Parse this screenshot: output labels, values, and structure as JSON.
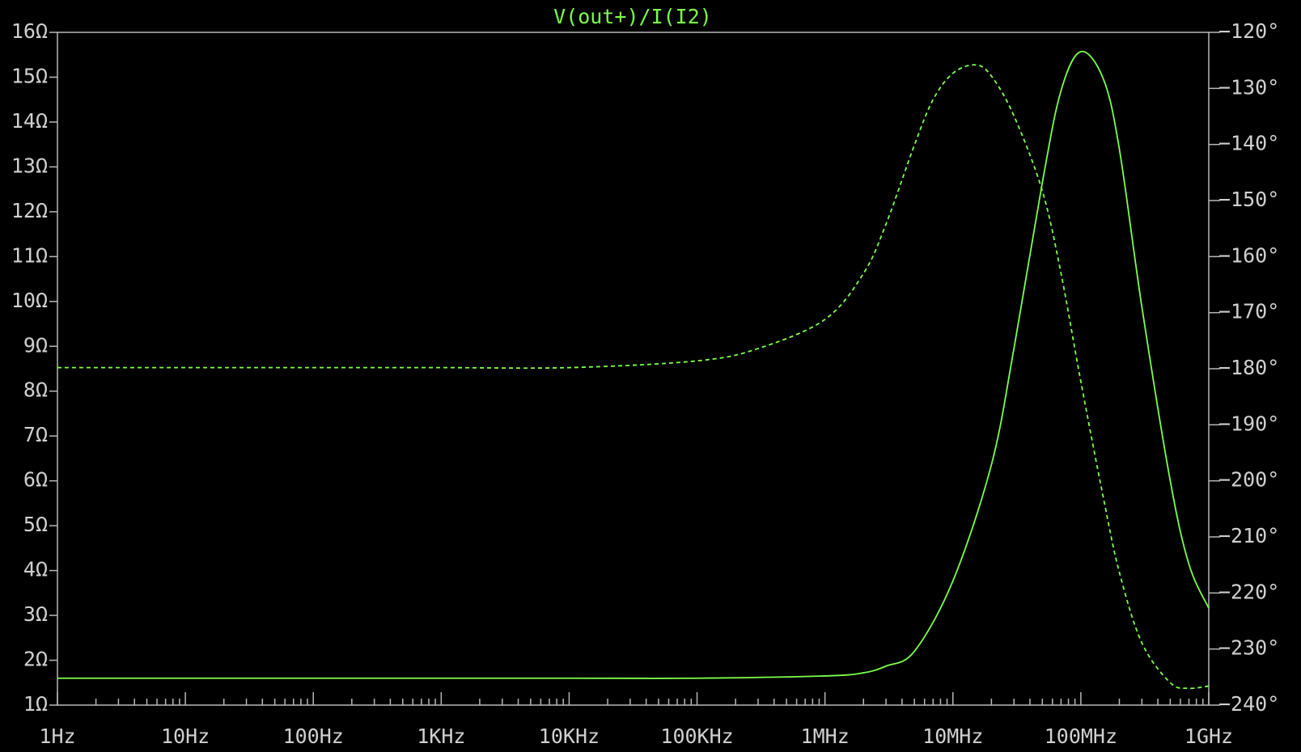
{
  "chart_data": {
    "type": "line",
    "title": "V(out+)/I(I2)",
    "title_color": "#7cff4a",
    "xscale": "log",
    "xlim": [
      1,
      1000000000
    ],
    "xticks": [
      {
        "value": 1,
        "label": "1Hz"
      },
      {
        "value": 10,
        "label": "10Hz"
      },
      {
        "value": 100,
        "label": "100Hz"
      },
      {
        "value": 1000,
        "label": "1KHz"
      },
      {
        "value": 10000,
        "label": "10KHz"
      },
      {
        "value": 100000,
        "label": "100KHz"
      },
      {
        "value": 1000000,
        "label": "1MHz"
      },
      {
        "value": 10000000,
        "label": "10MHz"
      },
      {
        "value": 100000000,
        "label": "100MHz"
      },
      {
        "value": 1000000000,
        "label": "1GHz"
      }
    ],
    "ylim": [
      1,
      16
    ],
    "yticks": [
      {
        "value": 1,
        "label": "1Ω"
      },
      {
        "value": 2,
        "label": "2Ω"
      },
      {
        "value": 3,
        "label": "3Ω"
      },
      {
        "value": 4,
        "label": "4Ω"
      },
      {
        "value": 5,
        "label": "5Ω"
      },
      {
        "value": 6,
        "label": "6Ω"
      },
      {
        "value": 7,
        "label": "7Ω"
      },
      {
        "value": 8,
        "label": "8Ω"
      },
      {
        "value": 9,
        "label": "9Ω"
      },
      {
        "value": 10,
        "label": "10Ω"
      },
      {
        "value": 11,
        "label": "11Ω"
      },
      {
        "value": 12,
        "label": "12Ω"
      },
      {
        "value": 13,
        "label": "13Ω"
      },
      {
        "value": 14,
        "label": "14Ω"
      },
      {
        "value": 15,
        "label": "15Ω"
      },
      {
        "value": 16,
        "label": "16Ω"
      }
    ],
    "y2lim": [
      -240,
      -120
    ],
    "y2ticks": [
      {
        "value": -240,
        "label": "−240°"
      },
      {
        "value": -230,
        "label": "−230°"
      },
      {
        "value": -220,
        "label": "−220°"
      },
      {
        "value": -210,
        "label": "−210°"
      },
      {
        "value": -200,
        "label": "−200°"
      },
      {
        "value": -190,
        "label": "−190°"
      },
      {
        "value": -180,
        "label": "−180°"
      },
      {
        "value": -170,
        "label": "−170°"
      },
      {
        "value": -160,
        "label": "−160°"
      },
      {
        "value": -150,
        "label": "−150°"
      },
      {
        "value": -140,
        "label": "−140°"
      },
      {
        "value": -130,
        "label": "−130°"
      },
      {
        "value": -120,
        "label": "−120°"
      }
    ],
    "grid": false,
    "series": [
      {
        "color": "#7cff4a",
        "dashed": false,
        "x": [
          1,
          10,
          100,
          1000,
          10000,
          100000,
          1000000,
          2000000,
          3000000,
          5000000,
          10000000,
          20000000,
          30000000,
          50000000,
          70000000,
          100000000,
          150000000,
          200000000,
          300000000,
          500000000,
          700000000,
          1000000000
        ],
        "values": [
          1.6,
          1.6,
          1.6,
          1.6,
          1.6,
          1.6,
          1.65,
          1.72,
          1.87,
          2.2,
          3.77,
          6.36,
          8.95,
          12.65,
          14.7,
          15.57,
          14.96,
          13.4,
          9.88,
          6,
          4.14,
          3.16
        ]
      },
      {
        "color": "#7cff4a",
        "dashed": true,
        "axis": "y2",
        "x": [
          1,
          10,
          100,
          1000,
          10000,
          100000,
          300000,
          1000000,
          2000000,
          3000000,
          5000000,
          7000000,
          10000000,
          15000000,
          20000000,
          30000000,
          50000000,
          70000000,
          100000000,
          150000000,
          200000000,
          300000000,
          500000000,
          700000000,
          1000000000
        ],
        "values": [
          -179.8,
          -179.8,
          -179.8,
          -179.8,
          -179.8,
          -178.6,
          -176.4,
          -171.2,
          -163,
          -154.2,
          -140.1,
          -132,
          -127.3,
          -125.8,
          -127.8,
          -134.9,
          -148.3,
          -163,
          -182.3,
          -203,
          -216.3,
          -228.9,
          -236,
          -237,
          -236.6
        ]
      }
    ]
  }
}
